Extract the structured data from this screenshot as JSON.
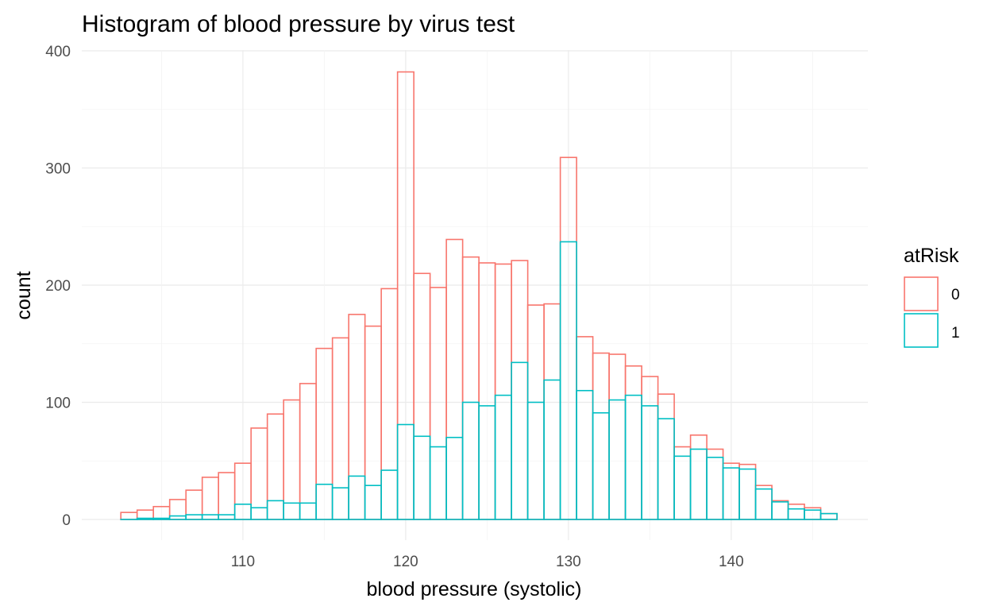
{
  "chart_data": {
    "type": "bar",
    "title": "Histogram of blood pressure by virus test",
    "xlabel": "blood pressure (systolic)",
    "ylabel": "count",
    "xlim": [
      102.5,
      146.5
    ],
    "ylim": [
      0,
      400
    ],
    "x_ticks": [
      110,
      120,
      130,
      140
    ],
    "y_ticks": [
      0,
      100,
      200,
      300,
      400
    ],
    "bin_width": 1,
    "grid": true,
    "legend": {
      "title": "atRisk",
      "position": "right"
    },
    "bins": [
      103,
      104,
      105,
      106,
      107,
      108,
      109,
      110,
      111,
      112,
      113,
      114,
      115,
      116,
      117,
      118,
      119,
      120,
      121,
      122,
      123,
      124,
      125,
      126,
      127,
      128,
      129,
      130,
      131,
      132,
      133,
      134,
      135,
      136,
      137,
      138,
      139,
      140,
      141,
      142,
      143,
      144,
      145,
      146
    ],
    "series": [
      {
        "name": "0",
        "color": "#F8766D",
        "values": [
          6,
          8,
          11,
          17,
          25,
          36,
          40,
          48,
          78,
          90,
          102,
          116,
          146,
          155,
          175,
          165,
          197,
          382,
          210,
          198,
          239,
          224,
          219,
          218,
          221,
          183,
          184,
          309,
          156,
          142,
          141,
          131,
          122,
          107,
          62,
          72,
          60,
          48,
          47,
          29,
          16,
          13,
          10,
          5
        ]
      },
      {
        "name": "1",
        "color": "#00BFC4",
        "values": [
          0,
          1,
          1,
          3,
          4,
          4,
          4,
          13,
          10,
          16,
          14,
          14,
          30,
          27,
          37,
          29,
          42,
          81,
          71,
          62,
          70,
          100,
          97,
          106,
          134,
          100,
          119,
          237,
          110,
          91,
          102,
          106,
          97,
          86,
          54,
          60,
          53,
          44,
          43,
          26,
          15,
          9,
          8,
          5
        ]
      }
    ]
  }
}
